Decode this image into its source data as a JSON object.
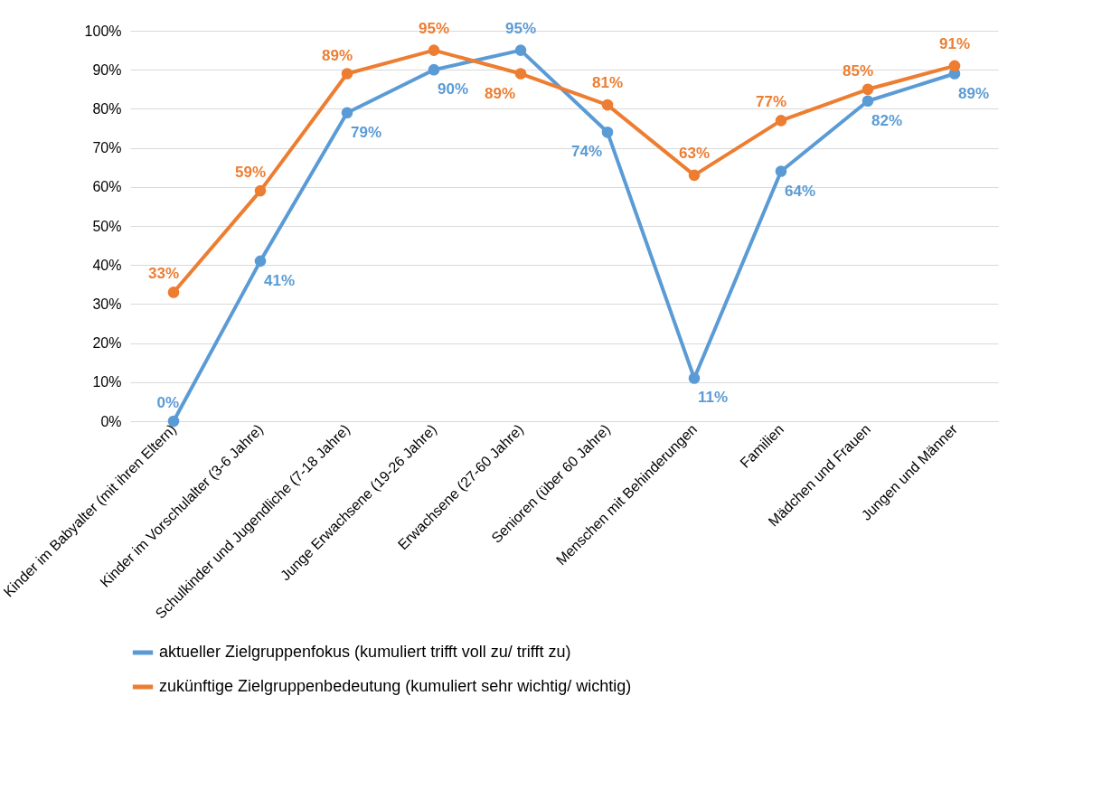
{
  "chart_data": {
    "type": "line",
    "categories": [
      "Kinder im Babyalter (mit ihren Eltern)",
      "Kinder im Vorschulalter (3-6 Jahre)",
      "Schulkinder und Jugendliche (7-18 Jahre)",
      "Junge Erwachsene (19-26 Jahre)",
      "Erwachsene (27-60 Jahre)",
      "Senioren (über 60 Jahre)",
      "Menschen mit Behinderungen",
      "Familien",
      "Mädchen und Frauen",
      "Jungen und Männer"
    ],
    "series": [
      {
        "name": "aktueller Zielgruppenfokus (kumuliert trifft voll zu/ trifft zu)",
        "color": "#5b9bd5",
        "values": [
          0,
          41,
          79,
          90,
          95,
          74,
          11,
          64,
          82,
          89
        ],
        "value_labels": [
          "0%",
          "41%",
          "79%",
          "90%",
          "95%",
          "74%",
          "11%",
          "64%",
          "82%",
          "89%"
        ]
      },
      {
        "name": "zukünftige Zielgruppenbedeutung (kumuliert sehr wichtig/ wichtig)",
        "color": "#ed7d31",
        "values": [
          33,
          59,
          89,
          95,
          89,
          81,
          63,
          77,
          85,
          91
        ],
        "value_labels": [
          "33%",
          "59%",
          "89%",
          "95%",
          "89%",
          "81%",
          "63%",
          "77%",
          "85%",
          "91%"
        ]
      }
    ],
    "ylim": [
      0,
      100
    ],
    "yticks": [
      {
        "value": 0,
        "label": "0%"
      },
      {
        "value": 10,
        "label": "10%"
      },
      {
        "value": 20,
        "label": "20%"
      },
      {
        "value": 30,
        "label": "30%"
      },
      {
        "value": 40,
        "label": "40%"
      },
      {
        "value": 50,
        "label": "50%"
      },
      {
        "value": 60,
        "label": "60%"
      },
      {
        "value": 70,
        "label": "70%"
      },
      {
        "value": 80,
        "label": "80%"
      },
      {
        "value": 90,
        "label": "90%"
      },
      {
        "value": 100,
        "label": "100%"
      }
    ],
    "grid": "y",
    "legend": "bottom",
    "marker": "circle",
    "line_style": "solid"
  }
}
